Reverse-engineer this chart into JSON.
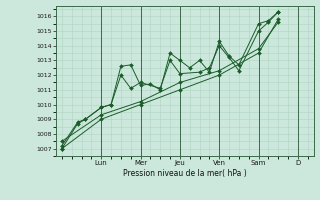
{
  "background_color": "#cce8dc",
  "grid_color": "#b0d4c4",
  "line_color": "#1a5c2a",
  "marker_color": "#1a5c2a",
  "xlabel": "Pression niveau de la mer( hPa )",
  "ylim": [
    1006.5,
    1016.7
  ],
  "yticks": [
    1007,
    1008,
    1009,
    1010,
    1011,
    1012,
    1013,
    1014,
    1015,
    1016
  ],
  "day_labels": [
    "Lun",
    "Mer",
    "Jeu",
    "Ven",
    "Sam",
    "D"
  ],
  "day_positions": [
    2,
    4,
    6,
    8,
    10,
    12
  ],
  "xlim": [
    -0.3,
    12.8
  ],
  "series": [
    {
      "x": [
        0,
        0.8,
        1.2,
        2,
        2.5,
        3,
        3.5,
        4,
        4.5,
        5,
        5.5,
        6,
        6.5,
        7,
        7.5,
        8,
        8.5,
        9,
        10,
        10.5,
        11
      ],
      "y": [
        1007.0,
        1008.7,
        1009.0,
        1009.8,
        1010.0,
        1012.6,
        1012.7,
        1011.3,
        1011.4,
        1011.0,
        1013.5,
        1013.0,
        1012.5,
        1013.0,
        1012.2,
        1014.3,
        1013.3,
        1012.7,
        1015.5,
        1015.7,
        1016.3
      ]
    },
    {
      "x": [
        0,
        0.8,
        1.2,
        2,
        2.5,
        3,
        3.5,
        4,
        5,
        5.5,
        6,
        7,
        7.5,
        8,
        8.5,
        9,
        10,
        10.5,
        11
      ],
      "y": [
        1007.2,
        1008.8,
        1009.0,
        1009.8,
        1010.0,
        1012.0,
        1011.1,
        1011.5,
        1011.1,
        1013.0,
        1012.1,
        1012.2,
        1012.5,
        1014.0,
        1013.2,
        1012.3,
        1015.0,
        1015.6,
        1016.3
      ]
    },
    {
      "x": [
        0,
        2,
        4,
        6,
        8,
        10,
        11
      ],
      "y": [
        1007.5,
        1009.3,
        1010.2,
        1011.5,
        1012.3,
        1013.8,
        1015.6
      ]
    },
    {
      "x": [
        0,
        2,
        4,
        6,
        8,
        10,
        11
      ],
      "y": [
        1007.0,
        1009.0,
        1010.0,
        1011.0,
        1012.0,
        1013.5,
        1015.8
      ]
    }
  ]
}
